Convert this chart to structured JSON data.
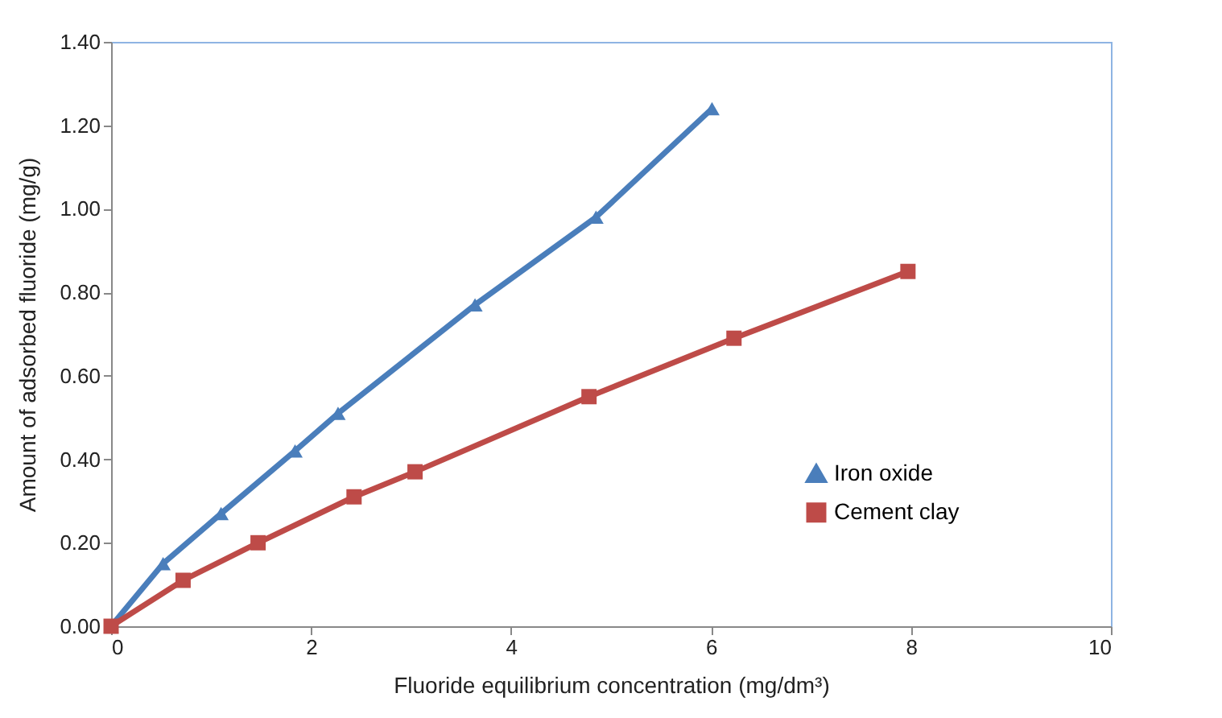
{
  "chart_data": {
    "type": "line",
    "xlabel": "Fluoride equilibrium concentration (mg/dm³)",
    "ylabel": "Amount of adsorbed fluoride (mg/g)",
    "xlim": [
      0,
      10
    ],
    "xticks": [
      0,
      2,
      4,
      6,
      8,
      10
    ],
    "ylim": [
      0,
      1.4
    ],
    "yticks": [
      {
        "value": 0,
        "label": "0.00"
      },
      {
        "value": 0.2,
        "label": "0.20"
      },
      {
        "value": 0.4,
        "label": "0.40"
      },
      {
        "value": 0.6,
        "label": "0.60"
      },
      {
        "value": 0.8,
        "label": "0.80"
      },
      {
        "value": 1.0,
        "label": "1.00"
      },
      {
        "value": 1.2,
        "label": "1.20"
      },
      {
        "value": 1.4,
        "label": "1.40"
      }
    ],
    "grid": false,
    "legend": "right",
    "series": [
      {
        "name": "Iron oxide",
        "color": "#4a7ebb",
        "marker": "triangle",
        "x": [
          0,
          0.52,
          1.1,
          1.84,
          2.27,
          3.64,
          4.85,
          6.01
        ],
        "values": [
          0,
          0.15,
          0.27,
          0.42,
          0.51,
          0.77,
          0.98,
          1.24
        ]
      },
      {
        "name": "Cement clay",
        "color": "#be4b48",
        "marker": "square",
        "x": [
          0,
          0.72,
          1.47,
          2.43,
          3.04,
          4.78,
          6.23,
          7.97
        ],
        "values": [
          0,
          0.11,
          0.2,
          0.31,
          0.37,
          0.55,
          0.69,
          0.85
        ]
      }
    ]
  }
}
